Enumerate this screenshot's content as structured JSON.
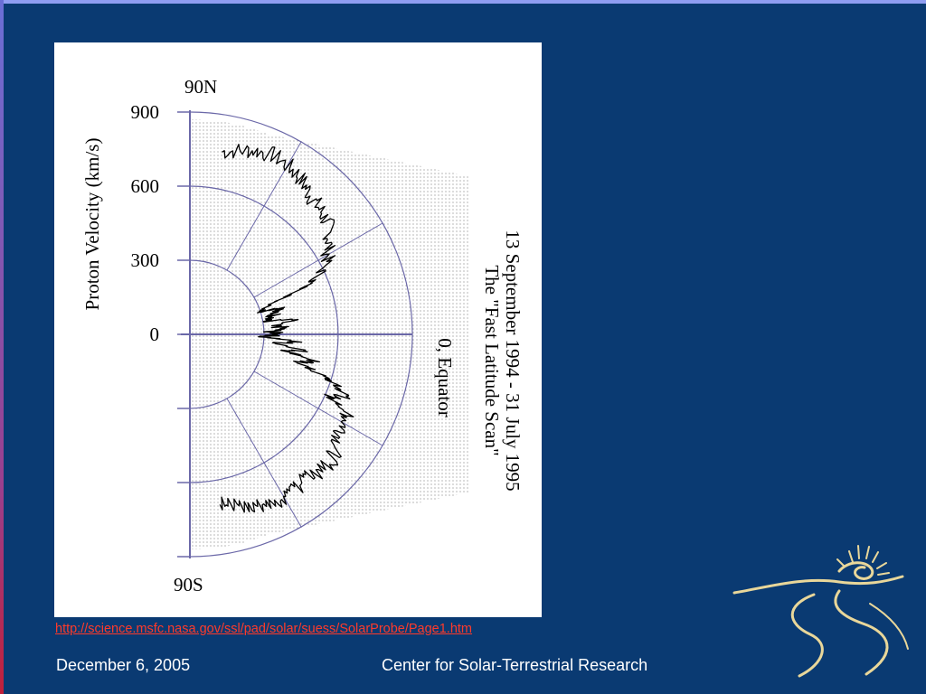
{
  "slide": {
    "background_color": "#0a3a72",
    "link_color": "#ff3a2a",
    "source_link": "http://science.msfc.nasa.gov/ssl/pad/solar/suess/SolarProbe/Page1.htm",
    "footer_date": "December 6, 2005",
    "footer_org": "Center for Solar-Terrestrial Research",
    "logo_icon": "sun-road-logo-icon"
  },
  "chart_data": {
    "type": "polar-line",
    "ylabel": "Proton Velocity (km/s)",
    "title_line1": "13 September 1994 - 31 July 1995",
    "title_line2": "The \"Fast Latitude Scan\"",
    "label_north": "90N",
    "label_south": "90S",
    "label_equator": "0, Equator",
    "radial_ticks": [
      {
        "value": 0,
        "label": "0"
      },
      {
        "value": 300,
        "label": "300"
      },
      {
        "value": 600,
        "label": "600"
      },
      {
        "value": 900,
        "label": "900"
      }
    ],
    "radial_range": [
      0,
      900
    ],
    "latitude_range": [
      -90,
      90
    ],
    "spoke_latitudes": [
      60,
      30,
      -30,
      -60
    ],
    "series": [
      {
        "points": [
          [
            80,
            750
          ],
          [
            75,
            770
          ],
          [
            70,
            790
          ],
          [
            65,
            800
          ],
          [
            60,
            790
          ],
          [
            56,
            780
          ],
          [
            52,
            760
          ],
          [
            48,
            740
          ],
          [
            44,
            730
          ],
          [
            40,
            720
          ],
          [
            36,
            700
          ],
          [
            32,
            660
          ],
          [
            28,
            630
          ],
          [
            24,
            560
          ],
          [
            22,
            480
          ],
          [
            21,
            380
          ],
          [
            18,
            300
          ],
          [
            16,
            400
          ],
          [
            14,
            330
          ],
          [
            12,
            360
          ],
          [
            10,
            300
          ],
          [
            8,
            420
          ],
          [
            6,
            330
          ],
          [
            4,
            380
          ],
          [
            2,
            330
          ],
          [
            0,
            360
          ],
          [
            -2,
            300
          ],
          [
            -4,
            430
          ],
          [
            -6,
            350
          ],
          [
            -8,
            470
          ],
          [
            -10,
            400
          ],
          [
            -12,
            520
          ],
          [
            -14,
            450
          ],
          [
            -16,
            500
          ],
          [
            -18,
            590
          ],
          [
            -20,
            640
          ],
          [
            -22,
            690
          ],
          [
            -24,
            600
          ],
          [
            -26,
            700
          ],
          [
            -28,
            720
          ],
          [
            -32,
            730
          ],
          [
            -36,
            740
          ],
          [
            -40,
            760
          ],
          [
            -44,
            770
          ],
          [
            -48,
            760
          ],
          [
            -52,
            750
          ],
          [
            -56,
            760
          ],
          [
            -60,
            770
          ],
          [
            -64,
            760
          ],
          [
            -68,
            750
          ],
          [
            -72,
            740
          ],
          [
            -76,
            720
          ],
          [
            -80,
            700
          ]
        ]
      }
    ]
  }
}
